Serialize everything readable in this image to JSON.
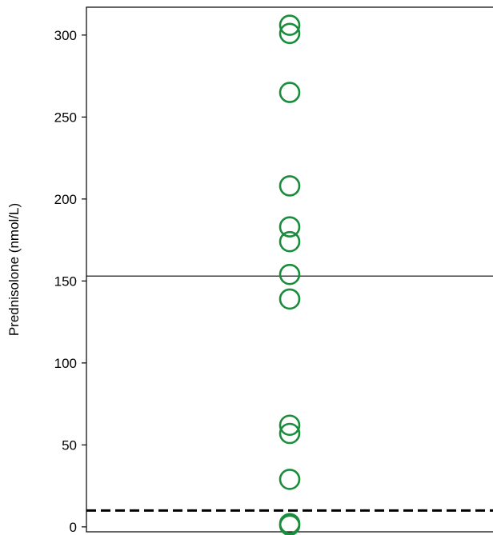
{
  "chart_data": {
    "type": "scatter",
    "title": "",
    "xlabel": "",
    "ylabel": "Prednisolone (nmol/L)",
    "ylim": [
      -3,
      317
    ],
    "yticks": [
      0,
      50,
      100,
      150,
      200,
      250,
      300
    ],
    "grid": false,
    "legend": "none",
    "series": [
      {
        "marker": "open-circle",
        "color": "#1a8c3c",
        "x": [
          1,
          1,
          1,
          1,
          1,
          1,
          1,
          1,
          1,
          1,
          1,
          1,
          1
        ],
        "y": [
          306,
          301,
          265,
          208,
          183,
          174,
          154,
          139,
          62,
          57,
          29,
          2,
          1
        ]
      }
    ],
    "reference_lines": [
      {
        "y": 153,
        "style": "solid",
        "color": "#000000"
      },
      {
        "y": 10,
        "style": "dashed",
        "color": "#000000"
      }
    ]
  }
}
